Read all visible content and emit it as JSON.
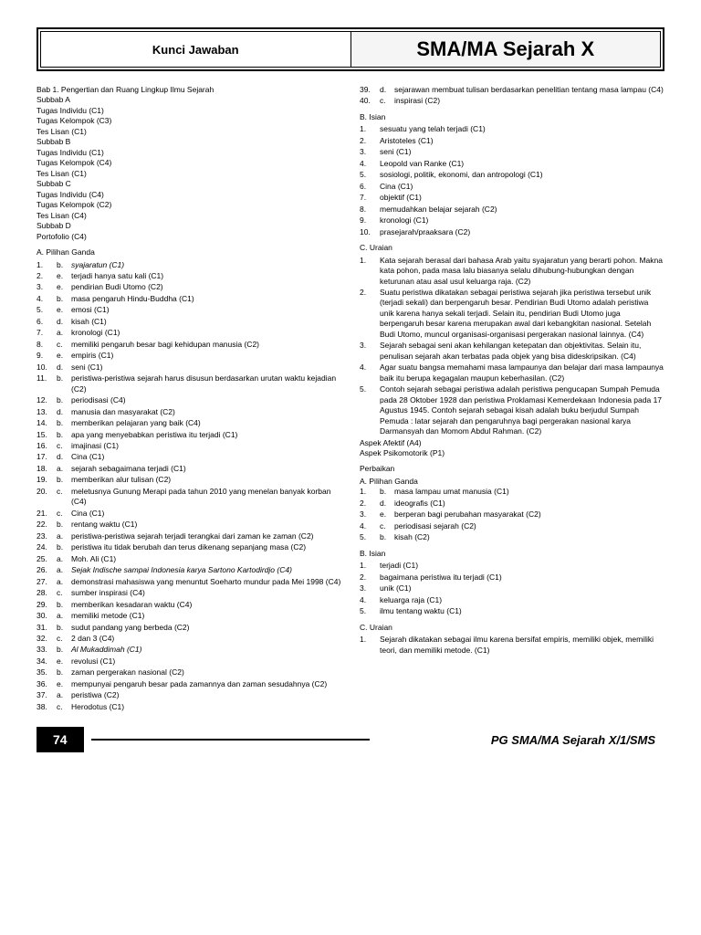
{
  "header": {
    "left": "Kunci Jawaban",
    "right": "SMA/MA Sejarah X"
  },
  "left": {
    "bab": "Bab 1.   Pengertian dan Ruang Lingkup Ilmu Sejarah",
    "subA": [
      "Subbab A",
      "Tugas Individu  (C1)",
      "Tugas Kelompok  (C3)",
      "Tes Lisan  (C1)"
    ],
    "subB": [
      "Subbab B",
      "Tugas Individu  (C1)",
      "Tugas Kelompok  (C4)",
      "Tes Lisan  (C1)"
    ],
    "subC": [
      "Subbab C",
      "Tugas Individu  (C4)",
      "Tugas Kelompok  (C2)",
      "Tes Lisan  (C4)"
    ],
    "subD": [
      "Subbab D",
      "Portofolio  (C4)"
    ],
    "pgTitle": "A.   Pilihan Ganda",
    "pg": [
      [
        "1.",
        "b.",
        "syajaratun  (C1)",
        true
      ],
      [
        "2.",
        "e.",
        "terjadi hanya satu kali  (C1)"
      ],
      [
        "3.",
        "e.",
        "pendirian Budi Utomo  (C2)"
      ],
      [
        "4.",
        "b.",
        "masa pengaruh Hindu-Buddha  (C1)"
      ],
      [
        "5.",
        "e.",
        "emosi  (C1)"
      ],
      [
        "6.",
        "d.",
        "kisah  (C1)"
      ],
      [
        "7.",
        "a.",
        "kronologi  (C1)"
      ],
      [
        "8.",
        "c.",
        "memiliki pengaruh besar bagi kehidupan manusia  (C2)"
      ],
      [
        "9.",
        "e.",
        "empiris  (C1)"
      ],
      [
        "10.",
        "d.",
        "seni  (C1)"
      ],
      [
        "11.",
        "b.",
        "peristiwa-peristiwa sejarah harus disusun berdasarkan urutan waktu kejadian  (C2)"
      ],
      [
        "12.",
        "b.",
        "periodisasi  (C4)"
      ],
      [
        "13.",
        "d.",
        "manusia dan masyarakat  (C2)"
      ],
      [
        "14.",
        "b.",
        "memberikan pelajaran yang baik  (C4)"
      ],
      [
        "15.",
        "b.",
        "apa yang menyebabkan peristiwa itu terjadi  (C1)"
      ],
      [
        "16.",
        "c.",
        "imajinasi  (C1)"
      ],
      [
        "17.",
        "d.",
        "Cina  (C1)"
      ],
      [
        "18.",
        "a.",
        "sejarah sebagaimana terjadi  (C1)"
      ],
      [
        "19.",
        "b.",
        "memberikan alur tulisan  (C2)"
      ],
      [
        "20.",
        "c.",
        "meletusnya Gunung Merapi pada tahun 2010 yang menelan banyak korban  (C4)"
      ],
      [
        "21.",
        "c.",
        "Cina  (C1)"
      ],
      [
        "22.",
        "b.",
        "rentang waktu  (C1)"
      ],
      [
        "23.",
        "a.",
        "peristiwa-peristiwa sejarah terjadi terangkai dari zaman ke zaman  (C2)"
      ],
      [
        "24.",
        "b.",
        "peristiwa itu tidak berubah dan terus dikenang sepanjang masa  (C2)"
      ],
      [
        "25.",
        "a.",
        "Moh. Ali  (C1)"
      ],
      [
        "26.",
        "a.",
        "Sejak Indische sampai Indonesia karya Sartono Kartodirdjo  (C4)",
        true
      ],
      [
        "27.",
        "a.",
        "demonstrasi mahasiswa yang menuntut Soeharto mundur pada Mei 1998  (C4)"
      ],
      [
        "28.",
        "c.",
        "sumber inspirasi  (C4)"
      ],
      [
        "29.",
        "b.",
        "memberikan kesadaran waktu  (C4)"
      ],
      [
        "30.",
        "a.",
        "memiliki metode  (C1)"
      ],
      [
        "31.",
        "b.",
        "sudut pandang yang berbeda  (C2)"
      ],
      [
        "32.",
        "c.",
        "2 dan 3  (C4)"
      ],
      [
        "33.",
        "b.",
        "Al Mukaddimah  (C1)",
        true
      ],
      [
        "34.",
        "e.",
        "revolusi  (C1)"
      ],
      [
        "35.",
        "b.",
        "zaman pergerakan nasional  (C2)"
      ],
      [
        "36.",
        "e.",
        "mempunyai pengaruh besar pada zamannya dan zaman sesudahnya  (C2)"
      ],
      [
        "37.",
        "a.",
        "peristiwa  (C2)"
      ],
      [
        "38.",
        "c.",
        "Herodotus  (C1)"
      ]
    ]
  },
  "right": {
    "top": [
      [
        "39.",
        "d.",
        "sejarawan membuat tulisan berdasarkan penelitian tentang masa lampau  (C4)"
      ],
      [
        "40.",
        "c.",
        "inspirasi  (C2)"
      ]
    ],
    "isianTitle": "B.   Isian",
    "isian": [
      [
        "1.",
        "sesuatu yang telah terjadi  (C1)"
      ],
      [
        "2.",
        "Aristoteles  (C1)"
      ],
      [
        "3.",
        "seni  (C1)"
      ],
      [
        "4.",
        "Leopold van Ranke  (C1)"
      ],
      [
        "5.",
        "sosiologi, politik, ekonomi, dan antropologi  (C1)"
      ],
      [
        "6.",
        "Cina  (C1)"
      ],
      [
        "7.",
        "objektif  (C1)"
      ],
      [
        "8.",
        "memudahkan belajar sejarah  (C2)"
      ],
      [
        "9.",
        "kronologi  (C1)"
      ],
      [
        "10.",
        "prasejarah/praaksara  (C2)"
      ]
    ],
    "uraianTitle": "C.   Uraian",
    "uraian": [
      [
        "1.",
        "Kata sejarah berasal dari bahasa Arab yaitu syajaratun yang berarti pohon. Makna kata pohon, pada masa lalu biasanya selalu dihubung-hubungkan dengan keturunan atau asal usul keluarga raja.  (C2)"
      ],
      [
        "2.",
        "Suatu peristiwa dikatakan sebagai peristiwa sejarah jika peristiwa tersebut unik (terjadi sekali) dan berpengaruh besar. Pendirian Budi Utomo adalah peristiwa unik karena hanya sekali terjadi. Selain itu, pendirian Budi Utomo juga berpengaruh besar karena merupakan awal dari kebangkitan nasional. Setelah Budi Utomo, muncul organisasi-organisasi pergerakan nasional lainnya.  (C4)"
      ],
      [
        "3.",
        "Sejarah sebagai seni akan kehilangan ketepatan dan objektivitas. Selain itu, penulisan sejarah akan terbatas pada objek yang bisa dideskripsikan.  (C4)"
      ],
      [
        "4.",
        "Agar suatu bangsa memahami masa lampaunya dan belajar dari masa lampaunya baik itu berupa kegagalan maupun keberhasilan.  (C2)"
      ],
      [
        "5.",
        "Contoh sejarah sebagai peristiwa adalah peristiwa pengucapan Sumpah Pemuda pada 28 Oktober 1928 dan peristiwa Proklamasi Kemerdekaan Indonesia pada 17 Agustus 1945. Contoh sejarah sebagai kisah adalah buku berjudul Sumpah Pemuda : latar sejarah dan pengaruhnya bagi pergerakan nasional karya Darmansyah dan Momom Abdul Rahman.  (C2)"
      ]
    ],
    "aspek": [
      "Aspek Afektif   (A4)",
      "Aspek Psikomotorik  (P1)"
    ],
    "perbaikan": "Perbaikan",
    "ppgTitle": "A.   Pilihan Ganda",
    "ppg": [
      [
        "1.",
        "b.",
        "masa lampau umat manusia  (C1)"
      ],
      [
        "2.",
        "d.",
        "ideografis  (C1)"
      ],
      [
        "3.",
        "e.",
        "berperan bagi perubahan masyarakat  (C2)"
      ],
      [
        "4.",
        "c.",
        "periodisasi sejarah  (C2)"
      ],
      [
        "5.",
        "b.",
        "kisah  (C2)"
      ]
    ],
    "pisianTitle": "B.   Isian",
    "pisian": [
      [
        "1.",
        "terjadi  (C1)"
      ],
      [
        "2.",
        "bagaimana peristiwa itu terjadi  (C1)"
      ],
      [
        "3.",
        "unik  (C1)"
      ],
      [
        "4.",
        "keluarga raja  (C1)"
      ],
      [
        "5.",
        "ilmu tentang waktu  (C1)"
      ]
    ],
    "puraianTitle": "C.   Uraian",
    "puraian": [
      [
        "1.",
        "Sejarah dikatakan sebagai ilmu karena bersifat empiris, memiliki objek, memiliki teori, dan memiliki metode.  (C1)"
      ]
    ]
  },
  "footer": {
    "page": "74",
    "title": "PG SMA/MA Sejarah X/1/SMS"
  }
}
